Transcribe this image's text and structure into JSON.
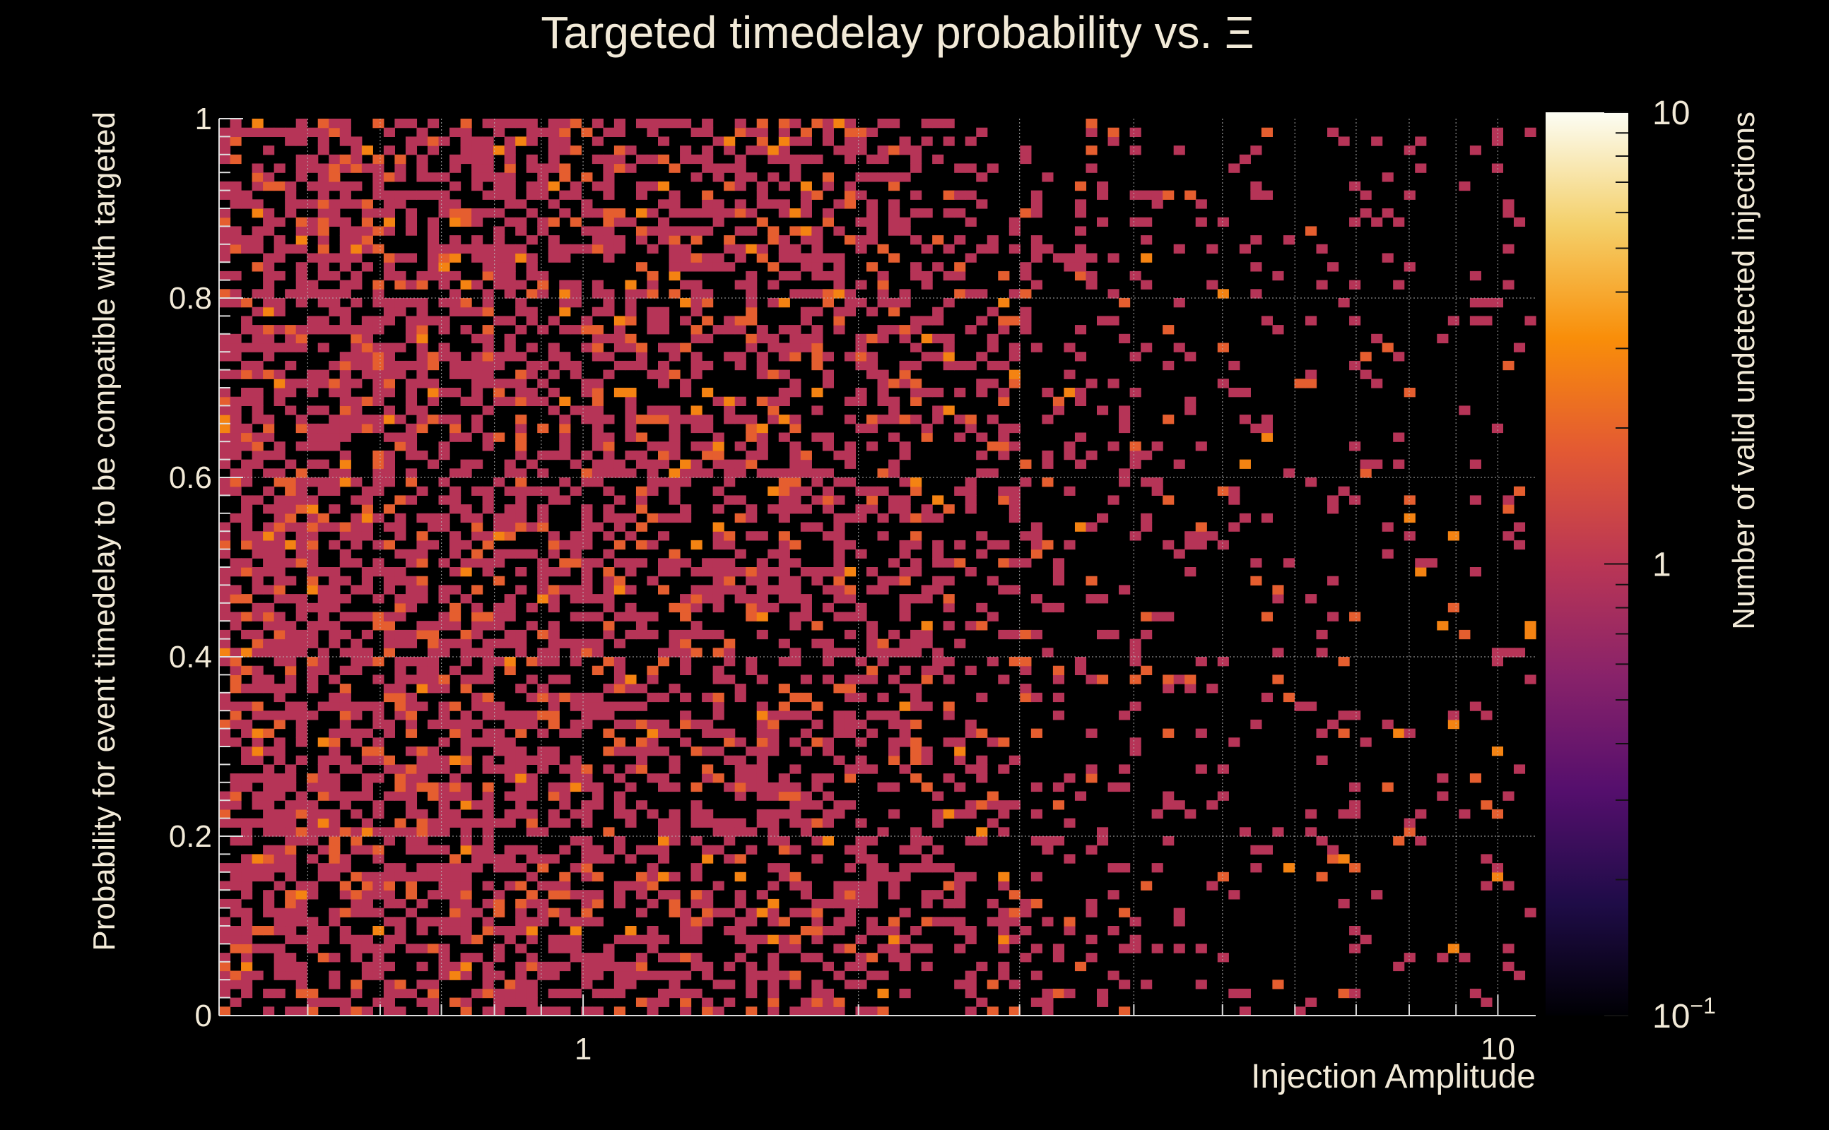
{
  "chart_data": {
    "type": "heatmap",
    "title": "Targeted timedelay probability vs.  Ξ",
    "xlabel": "Injection Amplitude",
    "ylabel": "Probability for event timedelay to be compatible with targeted",
    "zlabel": "Number of valid undetected injections",
    "x_scale": "log",
    "xlim": [
      0.4,
      11
    ],
    "ylim": [
      0,
      1
    ],
    "zlim": [
      0.1,
      10
    ],
    "z_scale": "log",
    "x_ticks": [
      {
        "value": 1,
        "label": "1"
      },
      {
        "value": 10,
        "label": "10"
      }
    ],
    "y_ticks": [
      {
        "value": 0,
        "label": "0"
      },
      {
        "value": 0.2,
        "label": "0.2"
      },
      {
        "value": 0.4,
        "label": "0.4"
      },
      {
        "value": 0.6,
        "label": "0.6"
      },
      {
        "value": 0.8,
        "label": "0.8"
      },
      {
        "value": 1,
        "label": "1"
      }
    ],
    "z_ticks": [
      {
        "value": 0.1,
        "label": "10",
        "exponent": "−1"
      },
      {
        "value": 1,
        "label": "1",
        "exponent": ""
      },
      {
        "value": 10,
        "label": "10",
        "exponent": ""
      }
    ],
    "grid": true,
    "colormap": [
      "#000004",
      "#1f0c48",
      "#550f6d",
      "#88226a",
      "#ba3655",
      "#e35933",
      "#f98e09",
      "#f4d06a",
      "#fcfdf4"
    ],
    "bins": {
      "nx": 120,
      "ny": 100
    },
    "density_note_x": [
      {
        "x": 0.4,
        "p": 0.62
      },
      {
        "x": 1.0,
        "p": 0.5
      },
      {
        "x": 2.0,
        "p": 0.42
      },
      {
        "x": 3.0,
        "p": 0.24
      },
      {
        "x": 5.0,
        "p": 0.1
      },
      {
        "x": 11.0,
        "p": 0.07
      }
    ],
    "level_shares": {
      "1": 0.82,
      "2": 0.15,
      "3": 0.03
    }
  }
}
